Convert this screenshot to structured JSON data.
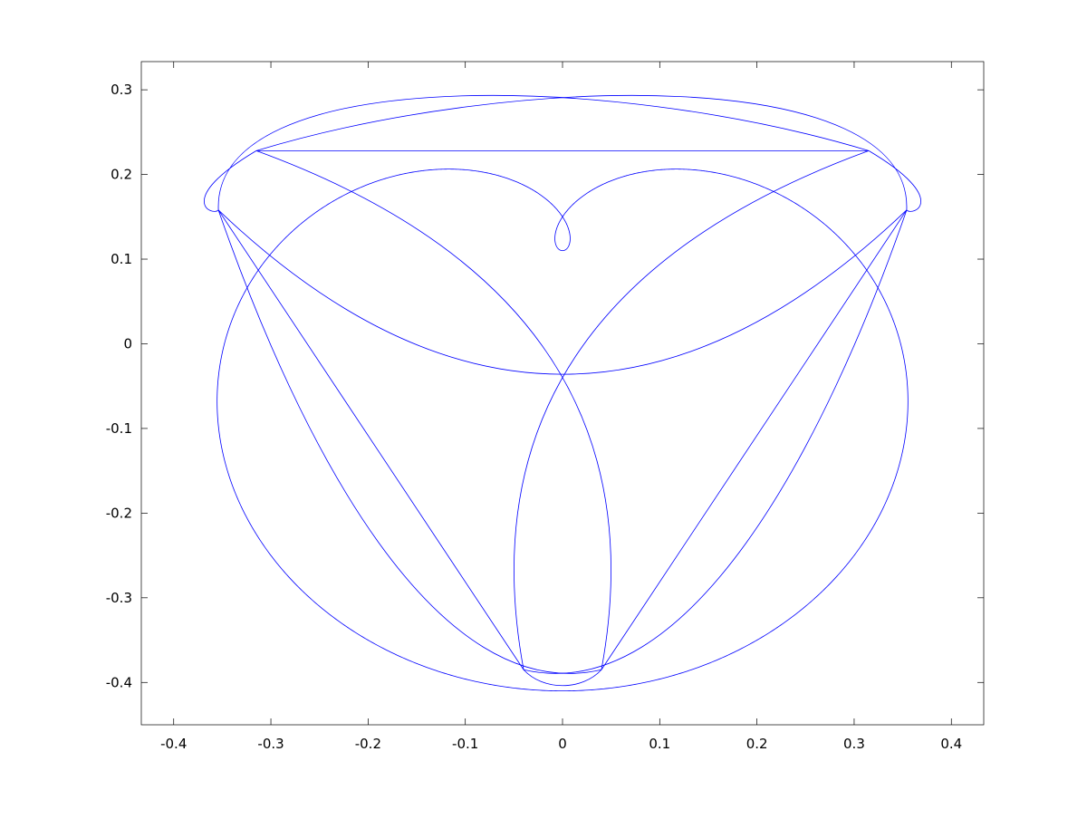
{
  "chart_data": {
    "type": "line",
    "title": "",
    "xlabel": "",
    "ylabel": "",
    "xlim": [
      -0.4333,
      0.4333
    ],
    "ylim": [
      -0.45,
      0.3333
    ],
    "x_ticks": [
      -0.4,
      -0.3,
      -0.2,
      -0.1,
      0,
      0.1,
      0.2,
      0.3,
      0.4
    ],
    "x_tick_labels": [
      "-0.4",
      "-0.3",
      "-0.2",
      "-0.1",
      "0",
      "0.1",
      "0.2",
      "0.3",
      "0.4"
    ],
    "y_ticks": [
      0.3,
      0.2,
      0.1,
      0,
      -0.1,
      -0.2,
      -0.3,
      -0.4
    ],
    "y_tick_labels": [
      "0.3",
      "0.2",
      "0.1",
      "0",
      "-0.1",
      "-0.2",
      "-0.3",
      "-0.4"
    ],
    "grid": false,
    "legend": "none",
    "series": [
      {
        "color": "#0000ff",
        "x": [
          -0.354,
          -0.3,
          -0.2,
          -0.1,
          0,
          0.1,
          0.2,
          0.3,
          0.354,
          0.315,
          0.2,
          0.1,
          0.05,
          0.005,
          -0.02,
          -0.04,
          -0.075,
          -0.09,
          -0.13,
          -0.2,
          -0.28,
          -0.315
        ],
        "y": [
          0.158,
          0.106,
          0.034,
          -0.015,
          -0.035,
          -0.015,
          0.034,
          0.106,
          0.158,
          0.228,
          0.165,
          0.1,
          0.0595,
          0.025,
          -0.1,
          -0.385,
          -0.4005,
          -0.397,
          -0.375,
          -0.32,
          -0.22,
          -0.1
        ],
        "parametric": true,
        "description_points": "sampled outline points of the closed trefoil-like curve"
      }
    ]
  }
}
